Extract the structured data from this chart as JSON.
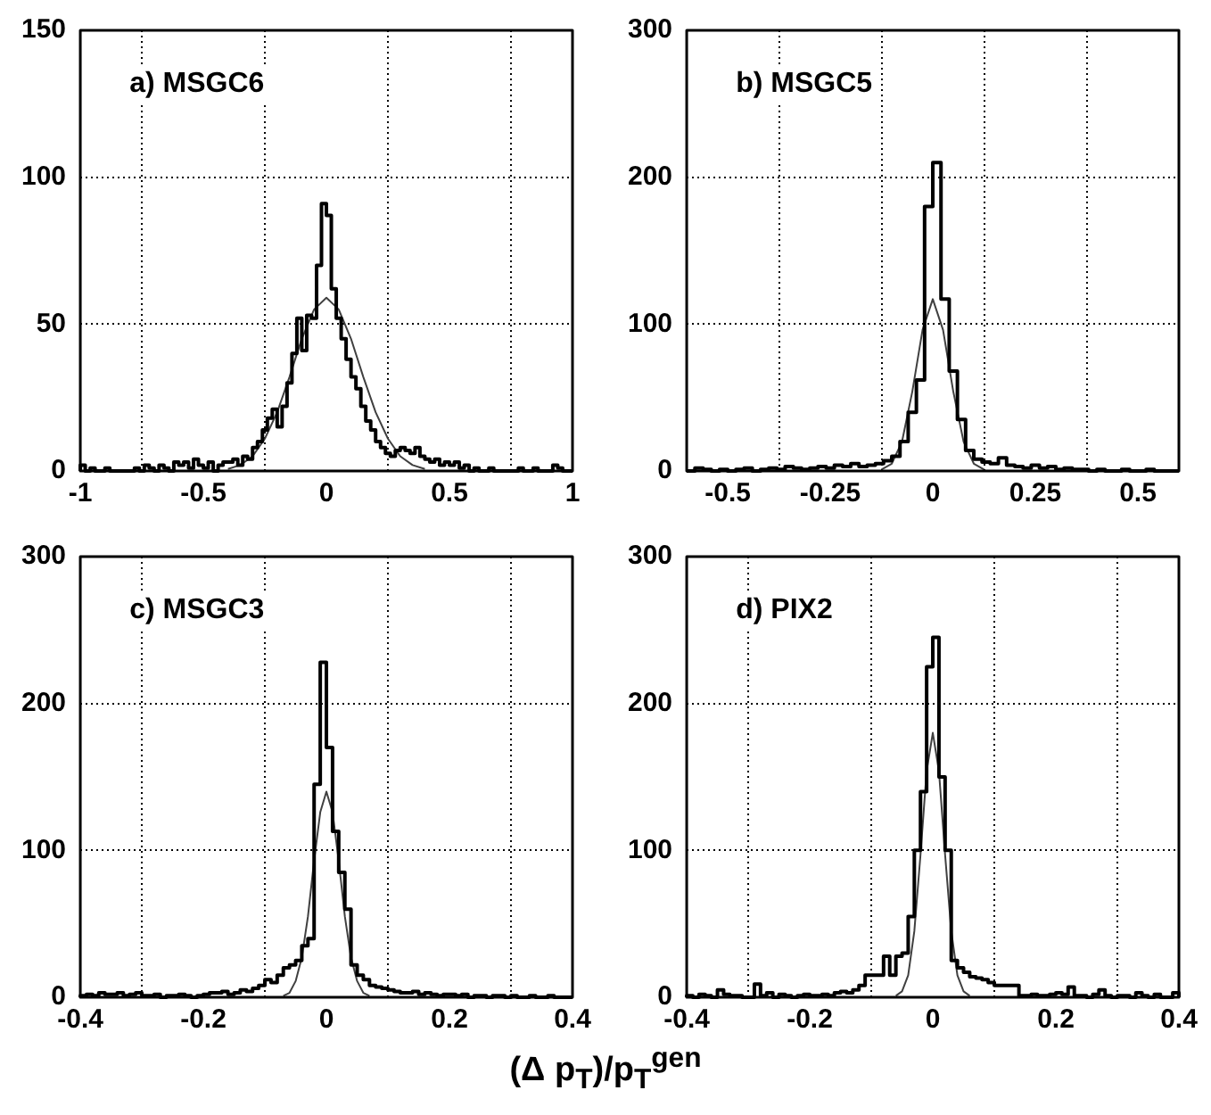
{
  "chart_data": [
    {
      "type": "histogram",
      "annotations": [
        "a) MSGC6"
      ],
      "color": "#000000",
      "grid": true,
      "xlim": [
        -1,
        1
      ],
      "xticks": [
        -1,
        -0.5,
        0,
        0.5,
        1
      ],
      "ylim": [
        0,
        150
      ],
      "yticks": [
        0,
        50,
        100,
        150
      ],
      "bins": [
        -1,
        -0.98,
        -0.96,
        -0.94,
        -0.92,
        -0.9,
        -0.88,
        -0.86,
        -0.84,
        -0.82,
        -0.8,
        -0.78,
        -0.76,
        -0.74,
        -0.72,
        -0.7,
        -0.68,
        -0.66,
        -0.64,
        -0.62,
        -0.6,
        -0.58,
        -0.56,
        -0.54,
        -0.52,
        -0.5,
        -0.48,
        -0.46,
        -0.44,
        -0.42,
        -0.4,
        -0.38,
        -0.36,
        -0.34,
        -0.32,
        -0.3,
        -0.28,
        -0.26,
        -0.24,
        -0.22,
        -0.2,
        -0.18,
        -0.16,
        -0.14,
        -0.12,
        -0.1,
        -0.08,
        -0.06,
        -0.04,
        -0.02,
        0,
        0.02,
        0.04,
        0.06,
        0.08,
        0.1,
        0.12,
        0.14,
        0.16,
        0.18,
        0.2,
        0.22,
        0.24,
        0.26,
        0.28,
        0.3,
        0.32,
        0.34,
        0.36,
        0.38,
        0.4,
        0.42,
        0.44,
        0.46,
        0.48,
        0.5,
        0.52,
        0.54,
        0.56,
        0.58,
        0.6,
        0.62,
        0.64,
        0.66,
        0.68,
        0.7,
        0.72,
        0.74,
        0.76,
        0.78,
        0.8,
        0.82,
        0.84,
        0.86,
        0.88,
        0.9,
        0.92,
        0.94,
        0.96,
        0.98,
        1
      ],
      "values": [
        2,
        0,
        1,
        0,
        0,
        1,
        0,
        0,
        0,
        0,
        0,
        1,
        0,
        2,
        1,
        0,
        2,
        1,
        0,
        3,
        2,
        3,
        1,
        4,
        2,
        1,
        3,
        0,
        2,
        3,
        3,
        4,
        2,
        5,
        4,
        8,
        10,
        14,
        18,
        21,
        15,
        22,
        30,
        40,
        52,
        41,
        53,
        52,
        70,
        91,
        87,
        62,
        52,
        45,
        38,
        32,
        28,
        22,
        17,
        14,
        10,
        8,
        6,
        5,
        7,
        8,
        7,
        6,
        8,
        5,
        4,
        3,
        4,
        2,
        3,
        2,
        3,
        1,
        2,
        0,
        1,
        0,
        0,
        1,
        0,
        0,
        0,
        0,
        0,
        1,
        0,
        0,
        1,
        0,
        0,
        0,
        2,
        1,
        0,
        0
      ],
      "series": [
        {
          "type": "line",
          "color": "#404040",
          "x": [
            -0.4,
            -0.35,
            -0.3,
            -0.25,
            -0.2,
            -0.15,
            -0.1,
            -0.05,
            0,
            0.05,
            0.1,
            0.15,
            0.2,
            0.25,
            0.3,
            0.35,
            0.4
          ],
          "values": [
            0.7,
            2,
            5,
            11,
            20,
            32,
            45,
            55,
            59,
            55,
            45,
            32,
            20,
            11,
            5,
            2,
            0.7
          ]
        }
      ]
    },
    {
      "type": "histogram",
      "annotations": [
        "b) MSGC5"
      ],
      "color": "#000000",
      "grid": true,
      "xlim": [
        -0.6,
        0.6
      ],
      "xticks": [
        -0.5,
        -0.25,
        0,
        0.25,
        0.5
      ],
      "ylim": [
        0,
        300
      ],
      "yticks": [
        0,
        100,
        200,
        300
      ],
      "bins": [
        -0.6,
        -0.58,
        -0.56,
        -0.54,
        -0.52,
        -0.5,
        -0.48,
        -0.46,
        -0.44,
        -0.42,
        -0.4,
        -0.38,
        -0.36,
        -0.34,
        -0.32,
        -0.3,
        -0.28,
        -0.26,
        -0.24,
        -0.22,
        -0.2,
        -0.18,
        -0.16,
        -0.14,
        -0.12,
        -0.1,
        -0.08,
        -0.06,
        -0.04,
        -0.02,
        0,
        0.02,
        0.04,
        0.06,
        0.08,
        0.1,
        0.12,
        0.14,
        0.16,
        0.18,
        0.2,
        0.22,
        0.24,
        0.26,
        0.28,
        0.3,
        0.32,
        0.34,
        0.36,
        0.38,
        0.4,
        0.42,
        0.44,
        0.46,
        0.48,
        0.5,
        0.52,
        0.54,
        0.56,
        0.58,
        0.6
      ],
      "values": [
        0,
        2,
        1,
        0,
        1,
        0,
        1,
        2,
        0,
        1,
        2,
        1,
        3,
        2,
        1,
        2,
        3,
        2,
        4,
        3,
        5,
        3,
        4,
        5,
        7,
        10,
        20,
        40,
        62,
        180,
        210,
        117,
        68,
        35,
        14,
        8,
        6,
        5,
        9,
        4,
        3,
        2,
        4,
        2,
        3,
        1,
        2,
        1,
        1,
        0,
        1,
        0,
        0,
        1,
        0,
        0,
        1,
        0,
        0,
        0
      ],
      "series": [
        {
          "type": "line",
          "color": "#404040",
          "x": [
            -0.125,
            -0.1,
            -0.075,
            -0.05,
            -0.025,
            0,
            0.025,
            0.05,
            0.075,
            0.1,
            0.125
          ],
          "values": [
            1,
            5,
            20,
            54,
            96,
            117,
            96,
            54,
            20,
            5,
            1
          ]
        }
      ]
    },
    {
      "type": "histogram",
      "annotations": [
        "c) MSGC3"
      ],
      "xlabel": "(Δ p$_{T}$)/p$_{T}$$^{gen}$",
      "color": "#000000",
      "grid": true,
      "xlim": [
        -0.4,
        0.4
      ],
      "xticks": [
        -0.4,
        -0.2,
        0,
        0.2,
        0.4
      ],
      "ylim": [
        0,
        300
      ],
      "yticks": [
        0,
        100,
        200,
        300
      ],
      "bins": [
        -0.4,
        -0.39,
        -0.38,
        -0.37,
        -0.36,
        -0.35,
        -0.34,
        -0.33,
        -0.32,
        -0.31,
        -0.3,
        -0.29,
        -0.28,
        -0.27,
        -0.26,
        -0.25,
        -0.24,
        -0.23,
        -0.22,
        -0.21,
        -0.2,
        -0.19,
        -0.18,
        -0.17,
        -0.16,
        -0.15,
        -0.14,
        -0.13,
        -0.12,
        -0.11,
        -0.1,
        -0.09,
        -0.08,
        -0.07,
        -0.06,
        -0.05,
        -0.04,
        -0.03,
        -0.02,
        -0.01,
        0,
        0.01,
        0.02,
        0.03,
        0.04,
        0.05,
        0.06,
        0.07,
        0.08,
        0.09,
        0.1,
        0.11,
        0.12,
        0.13,
        0.14,
        0.15,
        0.16,
        0.17,
        0.18,
        0.19,
        0.2,
        0.21,
        0.22,
        0.23,
        0.24,
        0.25,
        0.26,
        0.27,
        0.28,
        0.29,
        0.3,
        0.31,
        0.32,
        0.33,
        0.34,
        0.35,
        0.36,
        0.37,
        0.38,
        0.39,
        0.4
      ],
      "values": [
        1,
        2,
        1,
        3,
        2,
        2,
        3,
        1,
        2,
        3,
        1,
        1,
        2,
        0,
        1,
        1,
        2,
        1,
        0,
        1,
        2,
        3,
        3,
        4,
        2,
        3,
        5,
        4,
        6,
        8,
        12,
        10,
        15,
        20,
        22,
        25,
        35,
        40,
        145,
        228,
        170,
        113,
        85,
        60,
        22,
        15,
        12,
        8,
        7,
        6,
        5,
        4,
        3,
        3,
        4,
        2,
        3,
        2,
        1,
        2,
        2,
        1,
        2,
        0,
        1,
        1,
        0,
        1,
        1,
        0,
        1,
        0,
        0,
        1,
        0,
        0,
        1,
        0,
        0,
        0
      ],
      "series": [
        {
          "type": "line",
          "color": "#404040",
          "x": [
            -0.07,
            -0.06,
            -0.05,
            -0.04,
            -0.03,
            -0.02,
            -0.01,
            0,
            0.01,
            0.02,
            0.03,
            0.04,
            0.05,
            0.06,
            0.07
          ],
          "values": [
            1,
            3,
            11,
            27,
            55,
            93,
            126,
            140,
            126,
            93,
            55,
            27,
            11,
            3,
            1
          ]
        }
      ]
    },
    {
      "type": "histogram",
      "annotations": [
        "d) PIX2"
      ],
      "color": "#000000",
      "grid": true,
      "xlim": [
        -0.4,
        0.4
      ],
      "xticks": [
        -0.4,
        -0.2,
        0,
        0.2,
        0.4
      ],
      "ylim": [
        0,
        300
      ],
      "yticks": [
        0,
        100,
        200,
        300
      ],
      "bins": [
        -0.4,
        -0.39,
        -0.38,
        -0.37,
        -0.36,
        -0.35,
        -0.34,
        -0.33,
        -0.32,
        -0.31,
        -0.3,
        -0.29,
        -0.28,
        -0.27,
        -0.26,
        -0.25,
        -0.24,
        -0.23,
        -0.22,
        -0.21,
        -0.2,
        -0.19,
        -0.18,
        -0.17,
        -0.16,
        -0.15,
        -0.14,
        -0.13,
        -0.12,
        -0.11,
        -0.1,
        -0.09,
        -0.08,
        -0.07,
        -0.06,
        -0.05,
        -0.04,
        -0.03,
        -0.02,
        -0.01,
        0,
        0.01,
        0.02,
        0.03,
        0.04,
        0.05,
        0.06,
        0.07,
        0.08,
        0.09,
        0.1,
        0.11,
        0.12,
        0.13,
        0.14,
        0.15,
        0.16,
        0.17,
        0.18,
        0.19,
        0.2,
        0.21,
        0.22,
        0.23,
        0.24,
        0.25,
        0.26,
        0.27,
        0.28,
        0.29,
        0.3,
        0.31,
        0.32,
        0.33,
        0.34,
        0.35,
        0.36,
        0.37,
        0.38,
        0.39,
        0.4
      ],
      "values": [
        1,
        0,
        2,
        1,
        0,
        5,
        2,
        1,
        1,
        0,
        0,
        9,
        1,
        3,
        0,
        2,
        1,
        0,
        1,
        2,
        1,
        1,
        2,
        1,
        3,
        4,
        3,
        5,
        8,
        15,
        15,
        15,
        28,
        15,
        28,
        30,
        55,
        100,
        140,
        225,
        245,
        150,
        100,
        25,
        20,
        17,
        14,
        13,
        12,
        10,
        8,
        8,
        8,
        8,
        1,
        1,
        2,
        1,
        1,
        2,
        3,
        2,
        7,
        1,
        1,
        0,
        2,
        5,
        1,
        0,
        1,
        1,
        0,
        3,
        1,
        0,
        2,
        0,
        0,
        3
      ],
      "series": [
        {
          "type": "line",
          "color": "#404040",
          "x": [
            -0.06,
            -0.05,
            -0.04,
            -0.03,
            -0.02,
            -0.01,
            0,
            0.01,
            0.02,
            0.03,
            0.04,
            0.05,
            0.06
          ],
          "values": [
            1,
            4,
            15,
            45,
            97,
            154,
            180,
            154,
            97,
            45,
            15,
            4,
            1
          ]
        }
      ]
    }
  ]
}
